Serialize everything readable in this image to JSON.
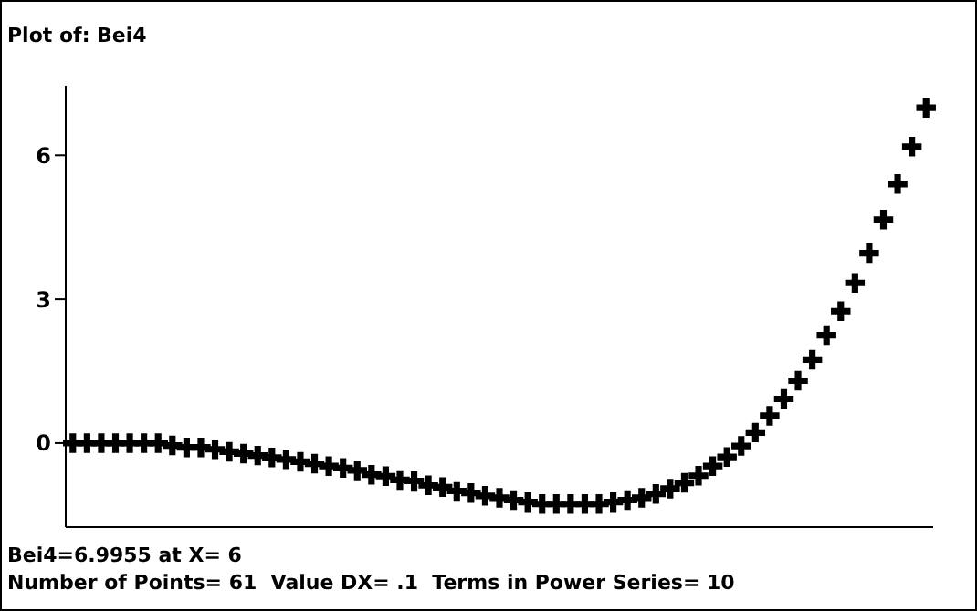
{
  "chart_data": {
    "type": "scatter",
    "title": "Plot of: Bei4",
    "categories": [
      null,
      null,
      null,
      null,
      null,
      null,
      null,
      null,
      null,
      null,
      null,
      null,
      null,
      null,
      null,
      null,
      null,
      null,
      null,
      null,
      null,
      null,
      null,
      null,
      null,
      null,
      null,
      null,
      null,
      null,
      null,
      null,
      null,
      null,
      null,
      null,
      null,
      null,
      null,
      null,
      null,
      null,
      null,
      null,
      null,
      null,
      null,
      null,
      null,
      null,
      null,
      null,
      null,
      null,
      null,
      null,
      null,
      null,
      null,
      null,
      null
    ],
    "series": [
      {
        "color": "#000000",
        "values": [
          0,
          0,
          0,
          0,
          0,
          0,
          0,
          -0.05,
          -0.09,
          -0.09,
          -0.13,
          -0.18,
          -0.22,
          -0.26,
          -0.3,
          -0.34,
          -0.39,
          -0.43,
          -0.48,
          -0.52,
          -0.57,
          -0.66,
          -0.69,
          -0.77,
          -0.79,
          -0.88,
          -0.92,
          -1,
          -1.04,
          -1.1,
          -1.14,
          -1.19,
          -1.23,
          -1.27,
          -1.27,
          -1.27,
          -1.27,
          -1.27,
          -1.23,
          -1.19,
          -1.14,
          -1.06,
          -0.95,
          -0.83,
          -0.68,
          -0.48,
          -0.29,
          -0.06,
          0.22,
          0.57,
          0.92,
          1.3,
          1.74,
          2.25,
          2.75,
          3.34,
          3.96,
          4.66,
          5.4,
          6.18,
          6.99
        ]
      }
    ],
    "ylim": [
      -1.75,
      7.45
    ],
    "yticks": [
      0,
      3,
      6
    ],
    "tick_labels": "y",
    "marker": "cross",
    "grid": false,
    "legend": false,
    "annotations": [
      "Bei4=6.9955 at X= 6",
      "Number of Points= 61  Value DX= .1  Terms in Power Series= 10"
    ]
  }
}
